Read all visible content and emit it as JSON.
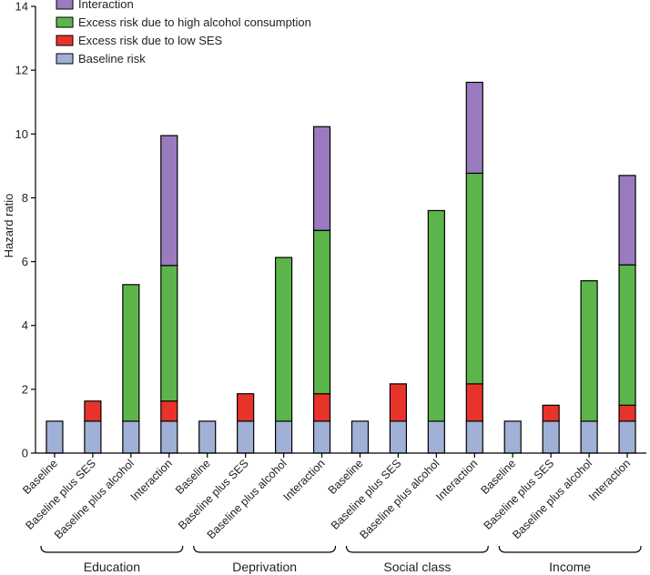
{
  "chart_data": {
    "type": "bar",
    "stacked": true,
    "ylabel": "Hazard ratio",
    "ylim": [
      0,
      14
    ],
    "yticks": [
      0,
      2,
      4,
      6,
      8,
      10,
      12,
      14
    ],
    "categories": [
      "Baseline",
      "Baseline plus SES",
      "Baseline plus alcohol",
      "Interaction"
    ],
    "groups": [
      {
        "name": "Education",
        "values": {
          "baseline": [
            1,
            1,
            1,
            1
          ],
          "ses": [
            0,
            0.63,
            0,
            0.63
          ],
          "alcohol": [
            0,
            0,
            4.28,
            4.25
          ],
          "interaction": [
            0,
            0,
            0,
            4.07
          ]
        }
      },
      {
        "name": "Deprivation",
        "values": {
          "baseline": [
            1,
            1,
            1,
            1
          ],
          "ses": [
            0,
            0.86,
            0,
            0.86
          ],
          "alcohol": [
            0,
            0,
            5.13,
            5.12
          ],
          "interaction": [
            0,
            0,
            0,
            3.25
          ]
        }
      },
      {
        "name": "Social class",
        "values": {
          "baseline": [
            1,
            1,
            1,
            1
          ],
          "ses": [
            0,
            1.17,
            0,
            1.17
          ],
          "alcohol": [
            0,
            0,
            6.6,
            6.6
          ],
          "interaction": [
            0,
            0,
            0,
            2.85
          ]
        }
      },
      {
        "name": "Income",
        "values": {
          "baseline": [
            1,
            1,
            1,
            1
          ],
          "ses": [
            0,
            0.5,
            0,
            0.5
          ],
          "alcohol": [
            0,
            0,
            4.4,
            4.4
          ],
          "interaction": [
            0,
            0,
            0,
            2.8
          ]
        }
      }
    ],
    "series": [
      {
        "key": "baseline",
        "name": "Baseline risk",
        "color": "#a0b0d6"
      },
      {
        "key": "ses",
        "name": "Excess risk due to low SES",
        "color": "#e8332a"
      },
      {
        "key": "alcohol",
        "name": "Excess risk due to high alcohol consumption",
        "color": "#5cb54a"
      },
      {
        "key": "interaction",
        "name": "Interaction",
        "color": "#9a7bbf"
      }
    ],
    "legend": {
      "placement": "top-left",
      "order": [
        "interaction",
        "alcohol",
        "ses",
        "baseline"
      ]
    }
  }
}
